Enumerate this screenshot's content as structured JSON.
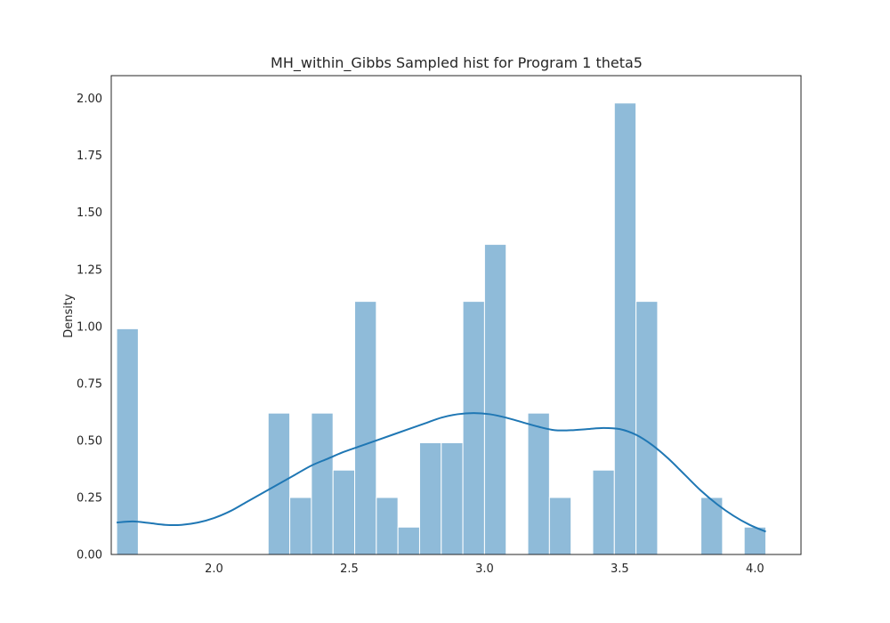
{
  "chart_data": {
    "type": "bar",
    "title": "MH_within_Gibbs Sampled hist for Program 1 theta5",
    "xlabel": "",
    "ylabel": "Density",
    "xlim": [
      1.62,
      4.17
    ],
    "ylim": [
      0,
      2.1
    ],
    "x_ticks": [
      2.0,
      2.5,
      3.0,
      3.5,
      4.0
    ],
    "x_tick_labels": [
      "2.0",
      "2.5",
      "3.0",
      "3.5",
      "4.0"
    ],
    "y_ticks": [
      0,
      0.25,
      0.5,
      0.75,
      1.0,
      1.25,
      1.5,
      1.75,
      2.0
    ],
    "y_tick_labels": [
      "0.00",
      "0.25",
      "0.50",
      "0.75",
      "1.00",
      "1.25",
      "1.50",
      "1.75",
      "2.00"
    ],
    "grid": false,
    "bin_width": 0.08,
    "bars": [
      {
        "x0": 1.64,
        "x1": 1.72,
        "value": 0.99
      },
      {
        "x0": 2.2,
        "x1": 2.28,
        "value": 0.62
      },
      {
        "x0": 2.28,
        "x1": 2.36,
        "value": 0.25
      },
      {
        "x0": 2.36,
        "x1": 2.44,
        "value": 0.62
      },
      {
        "x0": 2.44,
        "x1": 2.52,
        "value": 0.37
      },
      {
        "x0": 2.52,
        "x1": 2.6,
        "value": 1.11
      },
      {
        "x0": 2.6,
        "x1": 2.68,
        "value": 0.25
      },
      {
        "x0": 2.68,
        "x1": 2.76,
        "value": 0.12
      },
      {
        "x0": 2.76,
        "x1": 2.84,
        "value": 0.49
      },
      {
        "x0": 2.84,
        "x1": 2.92,
        "value": 0.49
      },
      {
        "x0": 2.92,
        "x1": 3.0,
        "value": 1.11
      },
      {
        "x0": 3.0,
        "x1": 3.08,
        "value": 1.36
      },
      {
        "x0": 3.16,
        "x1": 3.24,
        "value": 0.62
      },
      {
        "x0": 3.24,
        "x1": 3.32,
        "value": 0.25
      },
      {
        "x0": 3.4,
        "x1": 3.48,
        "value": 0.37
      },
      {
        "x0": 3.48,
        "x1": 3.56,
        "value": 1.98
      },
      {
        "x0": 3.56,
        "x1": 3.64,
        "value": 1.11
      },
      {
        "x0": 3.8,
        "x1": 3.88,
        "value": 0.25
      },
      {
        "x0": 3.96,
        "x1": 4.04,
        "value": 0.12
      }
    ],
    "kde": {
      "x": [
        1.64,
        1.7,
        1.76,
        1.82,
        1.88,
        1.94,
        2.0,
        2.06,
        2.12,
        2.18,
        2.24,
        2.3,
        2.36,
        2.42,
        2.48,
        2.54,
        2.6,
        2.66,
        2.72,
        2.78,
        2.84,
        2.9,
        2.96,
        3.02,
        3.08,
        3.14,
        3.2,
        3.26,
        3.32,
        3.38,
        3.44,
        3.5,
        3.56,
        3.62,
        3.68,
        3.74,
        3.8,
        3.86,
        3.92,
        3.98,
        4.04
      ],
      "y": [
        0.14,
        0.145,
        0.138,
        0.13,
        0.13,
        0.14,
        0.16,
        0.19,
        0.23,
        0.27,
        0.31,
        0.35,
        0.39,
        0.42,
        0.45,
        0.475,
        0.5,
        0.525,
        0.55,
        0.575,
        0.6,
        0.615,
        0.62,
        0.615,
        0.6,
        0.58,
        0.56,
        0.545,
        0.545,
        0.55,
        0.555,
        0.55,
        0.525,
        0.48,
        0.42,
        0.35,
        0.28,
        0.22,
        0.17,
        0.13,
        0.1
      ]
    },
    "colors": {
      "bar_fill": "#8fbbd9",
      "bar_edge": "#ffffff",
      "kde_line": "#1f77b4",
      "axes_edge": "#262626",
      "text": "#262626"
    }
  }
}
